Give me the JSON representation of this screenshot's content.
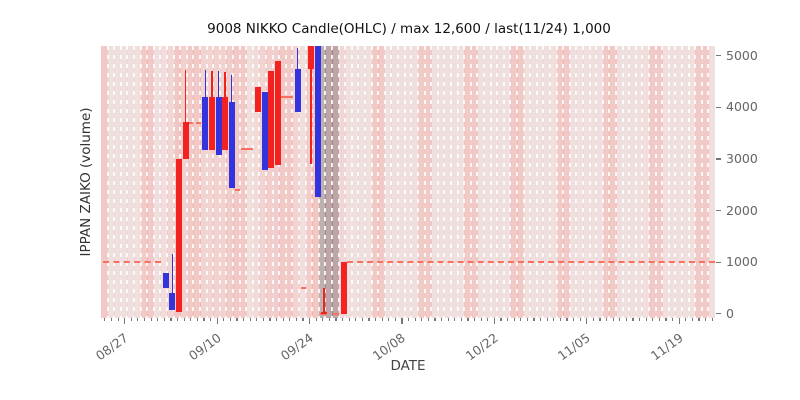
{
  "chart_data": {
    "type": "candlestick",
    "title": "9008 NIKKO Candle(OHLC) / max 12,600 / last(11/24) 1,000",
    "xlabel": "DATE",
    "ylabel": "IPPAN ZAIKO (volume)",
    "y_axis_side": "right",
    "y_ticks": [
      0,
      1000,
      2000,
      3000,
      4000,
      5000
    ],
    "ylim": [
      -80,
      5190
    ],
    "x_tick_labels": [
      "08/27",
      "09/10",
      "09/24",
      "10/08",
      "10/22",
      "11/05",
      "11/19"
    ],
    "x_tick_days": [
      3,
      17,
      31,
      45,
      59,
      73,
      87
    ],
    "x_range": {
      "start_date": "08/24",
      "end_date": "11/24",
      "total_days": 93,
      "minor_tick": "daily"
    },
    "grid": "white dashed vertical line per day, no horizontal grid",
    "legend": null,
    "offscale_max": 12600,
    "last": {
      "date": "11/24",
      "value": 1000
    },
    "colors": {
      "up_candle": "#f42121",
      "down_candle": "#3434df",
      "flat_dash_line": "#fb6f5e",
      "plot_bg": "#efe8e7",
      "day_tint": "255,80,70",
      "weekend_tint": "rgba(246,158,152,0.33)",
      "gray_band": "rgba(108,108,116,0.38)",
      "gridline": "rgba(255,255,255,0.85)",
      "tick_text": "#666",
      "title_text": "#111"
    },
    "candles": [
      {
        "date": "09/02",
        "day": 9,
        "dir": "down",
        "open": 800,
        "high": 800,
        "low": 500,
        "close": 500
      },
      {
        "date": "09/03",
        "day": 10,
        "dir": "down",
        "open": 400,
        "high": 1160,
        "low": 80,
        "close": 80
      },
      {
        "date": "09/04",
        "day": 11,
        "dir": "up",
        "open": 40,
        "high": 3000,
        "low": 40,
        "close": 3000
      },
      {
        "date": "09/05",
        "day": 12,
        "dir": "up",
        "open": 3000,
        "high": 4730,
        "low": 3000,
        "close": 3720
      },
      {
        "date": "09/08",
        "day": 15,
        "dir": "down",
        "open": 4210,
        "high": 4720,
        "low": 3180,
        "close": 3180
      },
      {
        "date": "09/09",
        "day": 16,
        "dir": "up",
        "open": 3180,
        "high": 4700,
        "low": 3180,
        "close": 4210
      },
      {
        "date": "09/10",
        "day": 17,
        "dir": "down",
        "open": 4210,
        "high": 4700,
        "low": 3080,
        "close": 3080
      },
      {
        "date": "09/11",
        "day": 18,
        "dir": "up",
        "open": 3180,
        "high": 4680,
        "low": 3180,
        "close": 4210
      },
      {
        "date": "09/12",
        "day": 19,
        "dir": "down",
        "open": 4110,
        "high": 4630,
        "low": 2440,
        "close": 2440
      },
      {
        "date": "09/16",
        "day": 23,
        "dir": "up",
        "open": 3920,
        "high": 4400,
        "low": 3920,
        "close": 4400
      },
      {
        "date": "09/17",
        "day": 24,
        "dir": "down",
        "open": 4300,
        "high": 4300,
        "low": 2790,
        "close": 2790
      },
      {
        "date": "09/18",
        "day": 25,
        "dir": "up",
        "open": 2820,
        "high": 4710,
        "low": 2820,
        "close": 4710
      },
      {
        "date": "09/19",
        "day": 26,
        "dir": "up",
        "open": 2890,
        "high": 4890,
        "low": 2890,
        "close": 4890
      },
      {
        "date": "09/22",
        "day": 29,
        "dir": "down",
        "open": 4750,
        "high": 5160,
        "low": 3910,
        "close": 3910
      },
      {
        "date": "09/24",
        "day": 31,
        "dir": "up",
        "open": 4750,
        "high": 5190,
        "low": 2900,
        "close": 5190,
        "top_clipped": true
      },
      {
        "date": "09/25",
        "day": 32,
        "dir": "down",
        "open": 5190,
        "high": 5190,
        "low": 2270,
        "close": 2270,
        "top_clipped": true
      },
      {
        "date": "09/26",
        "day": 33,
        "dir": "up",
        "open": 0,
        "high": 500,
        "low": 0,
        "close": 40
      },
      {
        "date": "09/29",
        "day": 36,
        "dir": "up",
        "open": 0,
        "high": 1000,
        "low": 0,
        "close": 1000
      }
    ],
    "flats": [
      {
        "from_day": 0,
        "to_day": 8,
        "from_date": "08/24",
        "to_date": "09/01",
        "level": 1000
      },
      {
        "from_day": 13,
        "to_day": 14,
        "from_date": "09/06",
        "to_date": "09/07",
        "level": 3700
      },
      {
        "from_day": 20,
        "to_day": 20,
        "from_date": "09/13",
        "to_date": "09/13",
        "level": 2400
      },
      {
        "from_day": 21,
        "to_day": 22,
        "from_date": "09/14",
        "to_date": "09/15",
        "level": 3200
      },
      {
        "from_day": 27,
        "to_day": 28,
        "from_date": "09/20",
        "to_date": "09/21",
        "level": 4200
      },
      {
        "from_day": 30,
        "to_day": 30,
        "from_date": "09/23",
        "to_date": "09/23",
        "level": 500
      },
      {
        "from_day": 33,
        "to_day": 35,
        "from_date": "09/26",
        "to_date": "09/28",
        "level": 0
      },
      {
        "from_day": 37,
        "to_day": 92,
        "from_date": "09/30",
        "to_date": "11/24",
        "level": 1000
      }
    ],
    "gray_band": {
      "from_day": 33,
      "to_day": 35,
      "from_date": "09/26",
      "to_date": "09/28"
    }
  }
}
